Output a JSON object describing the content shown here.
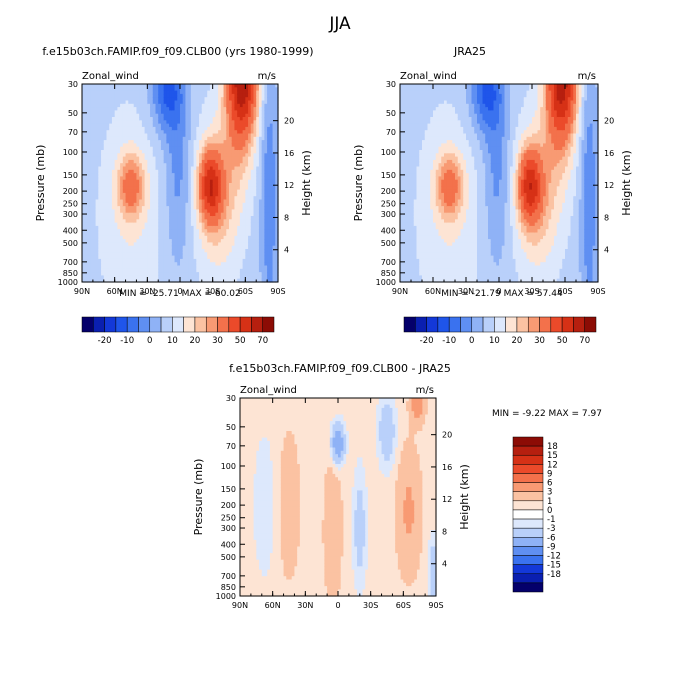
{
  "figure": {
    "title": "JJA"
  },
  "colors": {
    "blue_scale": [
      "#04006b",
      "#0a1fb0",
      "#1338d8",
      "#1f55ea",
      "#3a72ef",
      "#5f8ff2",
      "#8fb2f6",
      "#b9d0fa",
      "#dde8fc"
    ],
    "red_scale": [
      "#fde4d4",
      "#fbc2a2",
      "#f89a73",
      "#f3714b",
      "#eb4a2a",
      "#d63116",
      "#b61f0f",
      "#8c0c05"
    ]
  },
  "chart_data": [
    {
      "type": "heatmap",
      "title": "f.e15b03ch.FAMIP.f09_f09.CLB00 (yrs 1980-1999)",
      "left_label": "Zonal_wind",
      "units_label": "m/s",
      "xlabel": "",
      "ylabel": "Pressure (mb)",
      "ylabel_right": "Height (km)",
      "x_ticks": [
        "90N",
        "60N",
        "30N",
        "0",
        "30S",
        "60S",
        "90S"
      ],
      "y_ticks": [
        "30",
        "50",
        "70",
        "100",
        "150",
        "200",
        "250",
        "300",
        "400",
        "500",
        "700",
        "850",
        "1000"
      ],
      "y_ticks_right": [
        "4",
        "8",
        "12",
        "16",
        "20"
      ],
      "min_max_text": "MIN = -25.71   MAX = 60.02",
      "min": -25.71,
      "max": 60.02,
      "colorbar_labels": [
        "-20",
        "-10",
        "0",
        "10",
        "20",
        "30",
        "50",
        "70"
      ]
    },
    {
      "type": "heatmap",
      "title": "JRA25",
      "left_label": "Zonal_wind",
      "units_label": "m/s",
      "xlabel": "",
      "ylabel": "Pressure (mb)",
      "ylabel_right": "Height (km)",
      "x_ticks": [
        "90N",
        "60N",
        "30N",
        "0",
        "30S",
        "60S",
        "90S"
      ],
      "y_ticks": [
        "30",
        "50",
        "70",
        "100",
        "150",
        "200",
        "250",
        "300",
        "400",
        "500",
        "700",
        "850",
        "1000"
      ],
      "y_ticks_right": [
        "4",
        "8",
        "12",
        "16",
        "20"
      ],
      "min_max_text": "MIN = -21.79   MAX = 57.44",
      "min": -21.79,
      "max": 57.44,
      "colorbar_labels": [
        "-20",
        "-10",
        "0",
        "10",
        "20",
        "30",
        "50",
        "70"
      ]
    },
    {
      "type": "heatmap",
      "title": "f.e15b03ch.FAMIP.f09_f09.CLB00 - JRA25",
      "left_label": "Zonal_wind",
      "units_label": "m/s",
      "xlabel": "",
      "ylabel": "Pressure (mb)",
      "ylabel_right": "Height (km)",
      "x_ticks": [
        "90N",
        "60N",
        "30N",
        "0",
        "30S",
        "60S",
        "90S"
      ],
      "y_ticks": [
        "30",
        "50",
        "70",
        "100",
        "150",
        "200",
        "250",
        "300",
        "400",
        "500",
        "700",
        "850",
        "1000"
      ],
      "y_ticks_right": [
        "4",
        "8",
        "12",
        "16",
        "20"
      ],
      "min_max_text": "MIN = -9.22   MAX = 7.97",
      "min": -9.22,
      "max": 7.97,
      "colorbar_labels": [
        "18",
        "15",
        "12",
        "9",
        "6",
        "3",
        "1",
        "0",
        "-1",
        "-3",
        "-6",
        "-9",
        "-12",
        "-15",
        "-18"
      ]
    }
  ]
}
